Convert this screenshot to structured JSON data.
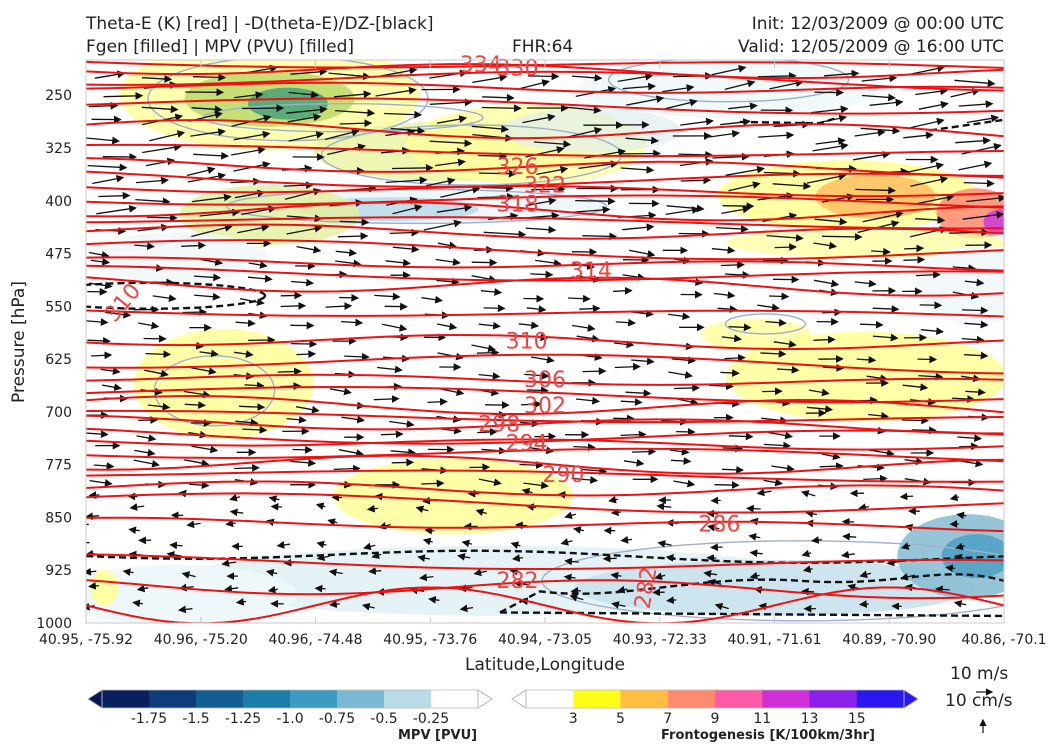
{
  "header": {
    "title_line1": "Theta-E (K) [red] | -D(theta-E)/DZ-[black]",
    "title_line2": "Fgen [filled] | MPV (PVU) [filled]",
    "fhr": "FHR:64",
    "init": "Init: 12/03/2009 @ 00:00 UTC",
    "valid": "Valid: 12/05/2009 @ 16:00 UTC"
  },
  "chart_data": {
    "type": "cross-section",
    "xlabel": "Latitude,Longitude",
    "ylabel": "Pressure [hPa]",
    "ylim": [
      1000,
      200
    ],
    "y_ticks": [
      250,
      325,
      400,
      475,
      550,
      625,
      700,
      775,
      850,
      925,
      1000
    ],
    "x_ticks": [
      "40.95, -75.92",
      "40.96, -75.20",
      "40.96, -74.48",
      "40.95, -73.76",
      "40.94, -73.05",
      "40.93, -72.33",
      "40.91, -71.61",
      "40.89, -70.90",
      "40.86, -70.1"
    ],
    "theta_e_contours": [
      {
        "label": "334",
        "p": 207,
        "pos": 0.43
      },
      {
        "label": "330",
        "p": 212,
        "pos": 0.47
      },
      {
        "label": "326",
        "p": 352,
        "pos": 0.47
      },
      {
        "label": "322",
        "p": 378,
        "pos": 0.5
      },
      {
        "label": "318",
        "p": 405,
        "pos": 0.47
      },
      {
        "label": "314",
        "p": 500,
        "pos": 0.55
      },
      {
        "label": "310",
        "p": 600,
        "pos": 0.48
      },
      {
        "label": "306",
        "p": 655,
        "pos": 0.5
      },
      {
        "label": "302",
        "p": 692,
        "pos": 0.5
      },
      {
        "label": "298",
        "p": 718,
        "pos": 0.45
      },
      {
        "label": "294",
        "p": 745,
        "pos": 0.48
      },
      {
        "label": "290",
        "p": 790,
        "pos": 0.52
      },
      {
        "label": "286",
        "p": 860,
        "pos": 0.69
      },
      {
        "label": "282",
        "p": 940,
        "pos": 0.47
      },
      {
        "label": "282",
        "p": 950,
        "pos": 0.61
      },
      {
        "label": "310",
        "p": 545,
        "pos": 0.04
      }
    ],
    "mpv_colorbar": {
      "label": "MPV [PVU]",
      "ticks": [
        "-1.75",
        "-1.5",
        "-1.25",
        "-1.0",
        "-0.75",
        "-0.5",
        "-0.25"
      ],
      "colors": [
        "#08205e",
        "#0c3d7a",
        "#125e92",
        "#1a7ea8",
        "#3c9bc0",
        "#7ab9d2",
        "#b9dbe6",
        "#ffffff"
      ]
    },
    "fgen_colorbar": {
      "label": "Frontogenesis [K/100km/3hr]",
      "ticks": [
        "3",
        "5",
        "7",
        "9",
        "11",
        "13",
        "15"
      ],
      "colors": [
        "#ffffff",
        "#ffff1a",
        "#ffbe40",
        "#ff8a70",
        "#ff5aa5",
        "#d030d8",
        "#8a20ea",
        "#2a18f0"
      ]
    },
    "wind_reference": [
      "10 m/s",
      "10 cm/s"
    ]
  }
}
